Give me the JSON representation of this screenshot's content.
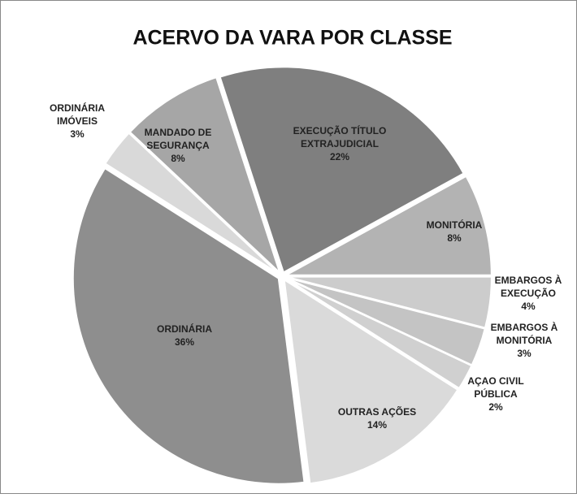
{
  "chart_data": {
    "type": "pie",
    "title": "ACERVO DA VARA POR CLASSE",
    "categories": [
      [
        "EXECUÇÃO TÍTULO",
        "EXTRAJUDICIAL"
      ],
      [
        "MONITÓRIA"
      ],
      [
        "EMBARGOS À",
        "EXECUÇÃO"
      ],
      [
        "EMBARGOS À",
        "MONITÓRIA"
      ],
      [
        "AÇAO CIVIL",
        "PÚBLICA"
      ],
      [
        "OUTRAS AÇÕES"
      ],
      [
        "ORDINÁRIA"
      ],
      [
        "ORDINÁRIA",
        "IMÓVEIS"
      ],
      [
        "MANDADO DE",
        "SEGURANÇA"
      ]
    ],
    "values": [
      22,
      8,
      4,
      3,
      2,
      14,
      36,
      3,
      8
    ],
    "value_labels": [
      "22%",
      "8%",
      "4%",
      "3%",
      "2%",
      "14%",
      "36%",
      "3%",
      "8%"
    ],
    "colors": [
      "#7f7f7f",
      "#b3b3b3",
      "#cccccc",
      "#c4c4c4",
      "#d0d0d0",
      "#dadada",
      "#8e8e8e",
      "#d9d9d9",
      "#a6a6a6"
    ]
  }
}
